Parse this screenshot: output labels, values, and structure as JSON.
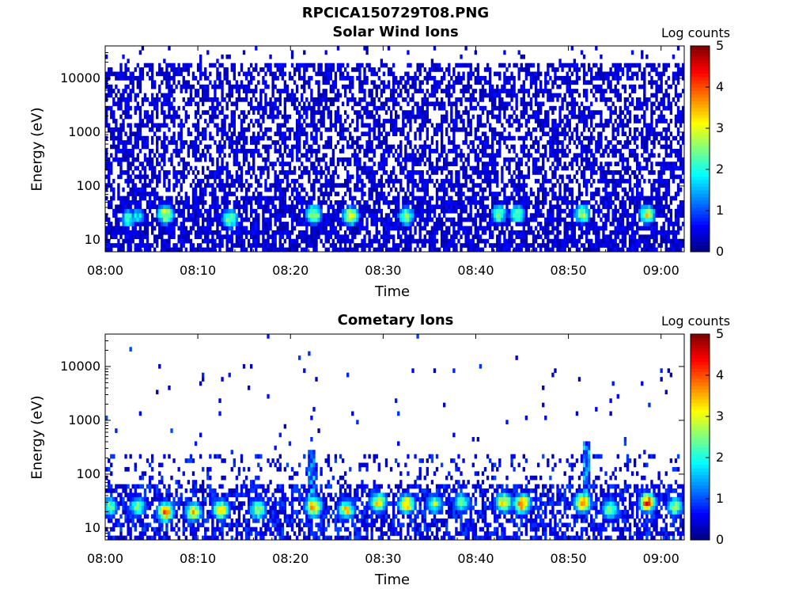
{
  "figure": {
    "main_title": "RPCICA150729T08.PNG"
  },
  "chart_data": [
    {
      "type": "heatmap",
      "title": "Solar Wind Ions",
      "xlabel": "Time",
      "ylabel": "Energy (eV)",
      "x_ticks": [
        "08:00",
        "08:10",
        "08:20",
        "08:30",
        "08:40",
        "08:50",
        "09:00"
      ],
      "x_range_minutes": [
        0,
        62.5
      ],
      "y_scale": "log",
      "y_ticks": [
        10,
        100,
        1000,
        10000
      ],
      "y_tick_labels": [
        "10",
        "100",
        "1000",
        "10000"
      ],
      "y_range": [
        6,
        40000
      ],
      "colorbar": {
        "label": "Log counts",
        "range": [
          0,
          5
        ],
        "ticks": [
          "0",
          "1",
          "2",
          "3",
          "4",
          "5"
        ],
        "colormap": "jet"
      },
      "description": "dense speckle of low counts (0-1) across 10 eV - 20000 eV; brighter bursts (2-3) near 20-40 eV",
      "bursts": [
        {
          "t": 6.5,
          "e": 30,
          "v": 3.0
        },
        {
          "t": 13.5,
          "e": 25,
          "v": 2.6
        },
        {
          "t": 22.5,
          "e": 30,
          "v": 3.0
        },
        {
          "t": 26.5,
          "e": 28,
          "v": 3.0
        },
        {
          "t": 32.5,
          "e": 28,
          "v": 2.6
        },
        {
          "t": 42.5,
          "e": 30,
          "v": 2.5
        },
        {
          "t": 44.5,
          "e": 30,
          "v": 2.5
        },
        {
          "t": 51.5,
          "e": 30,
          "v": 2.8
        },
        {
          "t": 58.5,
          "e": 30,
          "v": 3.0
        },
        {
          "t": 2.5,
          "e": 25,
          "v": 2.2
        },
        {
          "t": 3.5,
          "e": 28,
          "v": 1.8
        }
      ]
    },
    {
      "type": "heatmap",
      "title": "Cometary Ions",
      "xlabel": "Time",
      "ylabel": "Energy (eV)",
      "x_ticks": [
        "08:00",
        "08:10",
        "08:20",
        "08:30",
        "08:40",
        "08:50",
        "09:00"
      ],
      "x_range_minutes": [
        0,
        62.5
      ],
      "y_scale": "log",
      "y_ticks": [
        10,
        100,
        1000,
        10000
      ],
      "y_tick_labels": [
        "10",
        "100",
        "1000",
        "10000"
      ],
      "y_range": [
        6,
        40000
      ],
      "colorbar": {
        "label": "Log counts",
        "range": [
          0,
          5
        ],
        "ticks": [
          "0",
          "1",
          "2",
          "3",
          "4",
          "5"
        ],
        "colormap": "jet"
      },
      "description": "sparse dots at high energy; intense bursts (3-4) between 10 and 60 eV",
      "bursts": [
        {
          "t": 0.5,
          "e": 25,
          "v": 2.5
        },
        {
          "t": 3.5,
          "e": 25,
          "v": 2.5
        },
        {
          "t": 6.5,
          "e": 20,
          "v": 3.8
        },
        {
          "t": 9.5,
          "e": 20,
          "v": 3.3
        },
        {
          "t": 12.5,
          "e": 22,
          "v": 3.4
        },
        {
          "t": 16.5,
          "e": 22,
          "v": 2.8
        },
        {
          "t": 22.5,
          "e": 25,
          "v": 3.8
        },
        {
          "t": 26.0,
          "e": 22,
          "v": 3.2
        },
        {
          "t": 29.5,
          "e": 30,
          "v": 3.3
        },
        {
          "t": 32.5,
          "e": 28,
          "v": 3.5
        },
        {
          "t": 35.5,
          "e": 28,
          "v": 2.6
        },
        {
          "t": 38.5,
          "e": 30,
          "v": 2.5
        },
        {
          "t": 43.0,
          "e": 30,
          "v": 3.4
        },
        {
          "t": 45.0,
          "e": 28,
          "v": 3.9
        },
        {
          "t": 51.5,
          "e": 30,
          "v": 3.7
        },
        {
          "t": 54.5,
          "e": 22,
          "v": 2.8
        },
        {
          "t": 58.5,
          "e": 30,
          "v": 3.9
        },
        {
          "t": 61.5,
          "e": 25,
          "v": 2.6
        }
      ],
      "spikes": [
        {
          "t": 22.3,
          "e_top": 300
        },
        {
          "t": 52.0,
          "e_top": 400
        }
      ]
    }
  ]
}
